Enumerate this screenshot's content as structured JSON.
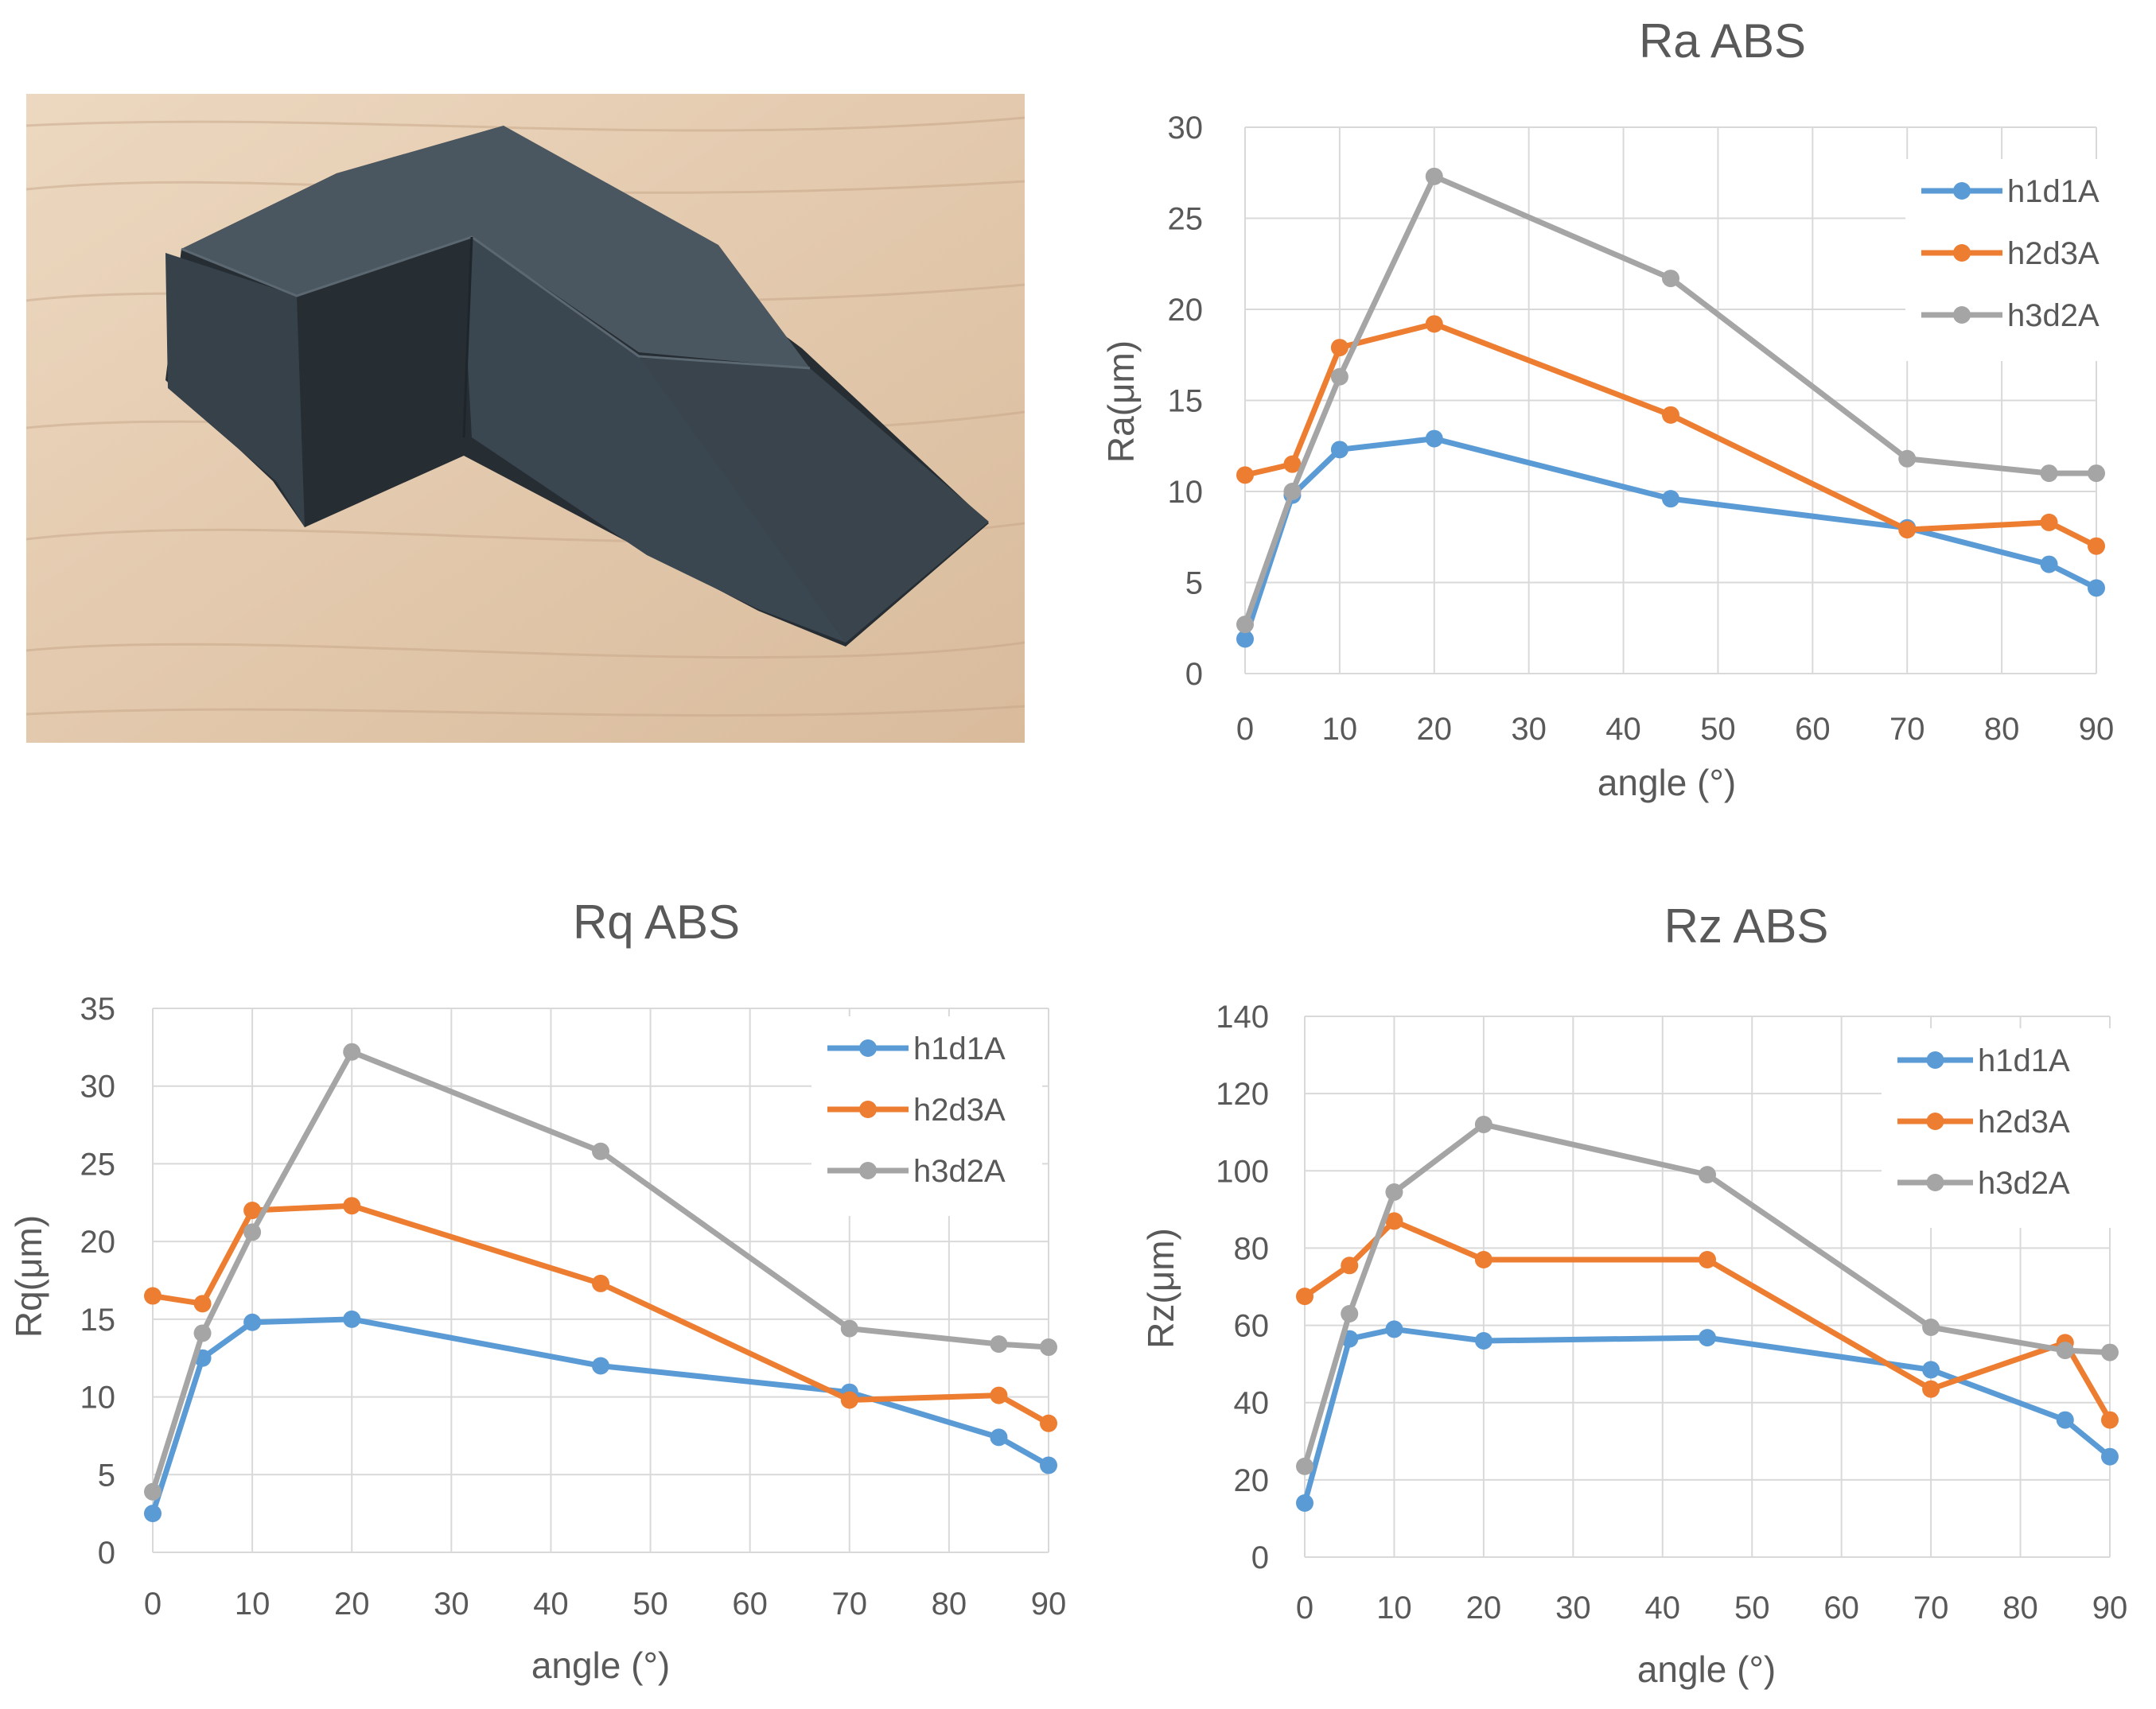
{
  "photo": {
    "subject": "3d-printed-abs-specimen",
    "colors": {
      "wood_light": "#e6cfb4",
      "wood_dark": "#c9a98a",
      "part_top": "#48545e",
      "part_side": "#36414a",
      "part_dark": "#262e34"
    }
  },
  "colors": {
    "h1d1A": "#5b9bd5",
    "h2d3A": "#ed7d31",
    "h3d2A": "#a5a5a5",
    "grid": "#d9d9d9",
    "text": "#595959"
  },
  "chart_data": [
    {
      "type": "line",
      "title": "Ra ABS",
      "xlabel": "angle (°)",
      "ylabel": "Ra(μm)",
      "xlim": [
        0,
        90
      ],
      "ylim": [
        0,
        30
      ],
      "xticks": [
        0,
        10,
        20,
        30,
        40,
        50,
        60,
        70,
        80,
        90
      ],
      "yticks": [
        0,
        5,
        10,
        15,
        20,
        25,
        30
      ],
      "grid": true,
      "legend": "top-right",
      "x": [
        0,
        5,
        10,
        20,
        45,
        70,
        85,
        90
      ],
      "series": [
        {
          "name": "h1d1A",
          "values": [
            1.9,
            9.8,
            12.3,
            12.9,
            9.6,
            8.0,
            6.0,
            4.7
          ]
        },
        {
          "name": "h2d3A",
          "values": [
            10.9,
            11.5,
            17.9,
            19.2,
            14.2,
            7.9,
            8.3,
            7.0
          ]
        },
        {
          "name": "h3d2A",
          "values": [
            2.7,
            10.0,
            16.3,
            27.3,
            21.7,
            11.8,
            11.0,
            11.0
          ]
        }
      ]
    },
    {
      "type": "line",
      "title": "Rq ABS",
      "xlabel": "angle (°)",
      "ylabel": "Rq(μm)",
      "xlim": [
        0,
        90
      ],
      "ylim": [
        0,
        35
      ],
      "xticks": [
        0,
        10,
        20,
        30,
        40,
        50,
        60,
        70,
        80,
        90
      ],
      "yticks": [
        0,
        5,
        10,
        15,
        20,
        25,
        30,
        35
      ],
      "grid": true,
      "legend": "top-right",
      "x": [
        0,
        5,
        10,
        20,
        45,
        70,
        85,
        90
      ],
      "series": [
        {
          "name": "h1d1A",
          "values": [
            2.5,
            12.5,
            14.8,
            15.0,
            12.0,
            10.3,
            7.4,
            5.6
          ]
        },
        {
          "name": "h2d3A",
          "values": [
            16.5,
            16.0,
            22.0,
            22.3,
            17.3,
            9.8,
            10.1,
            8.3
          ]
        },
        {
          "name": "h3d2A",
          "values": [
            3.9,
            14.1,
            20.6,
            32.2,
            25.8,
            14.4,
            13.4,
            13.2
          ]
        }
      ]
    },
    {
      "type": "line",
      "title": "Rz ABS",
      "xlabel": "angle (°)",
      "ylabel": "Rz(μm)",
      "xlim": [
        0,
        90
      ],
      "ylim": [
        0,
        140
      ],
      "xticks": [
        0,
        10,
        20,
        30,
        40,
        50,
        60,
        70,
        80,
        90
      ],
      "yticks": [
        0,
        20,
        40,
        60,
        80,
        100,
        120,
        140
      ],
      "grid": true,
      "legend": "top-right",
      "x": [
        0,
        5,
        10,
        20,
        45,
        70,
        85,
        90
      ],
      "series": [
        {
          "name": "h1d1A",
          "values": [
            14.0,
            56.5,
            59.0,
            56.0,
            56.8,
            48.5,
            35.5,
            26.0
          ]
        },
        {
          "name": "h2d3A",
          "values": [
            67.5,
            75.5,
            87.0,
            77.0,
            77.0,
            43.5,
            55.5,
            35.5
          ]
        },
        {
          "name": "h3d2A",
          "values": [
            23.5,
            63.0,
            94.5,
            112.0,
            99.0,
            59.5,
            53.5,
            53.0
          ]
        }
      ]
    }
  ]
}
